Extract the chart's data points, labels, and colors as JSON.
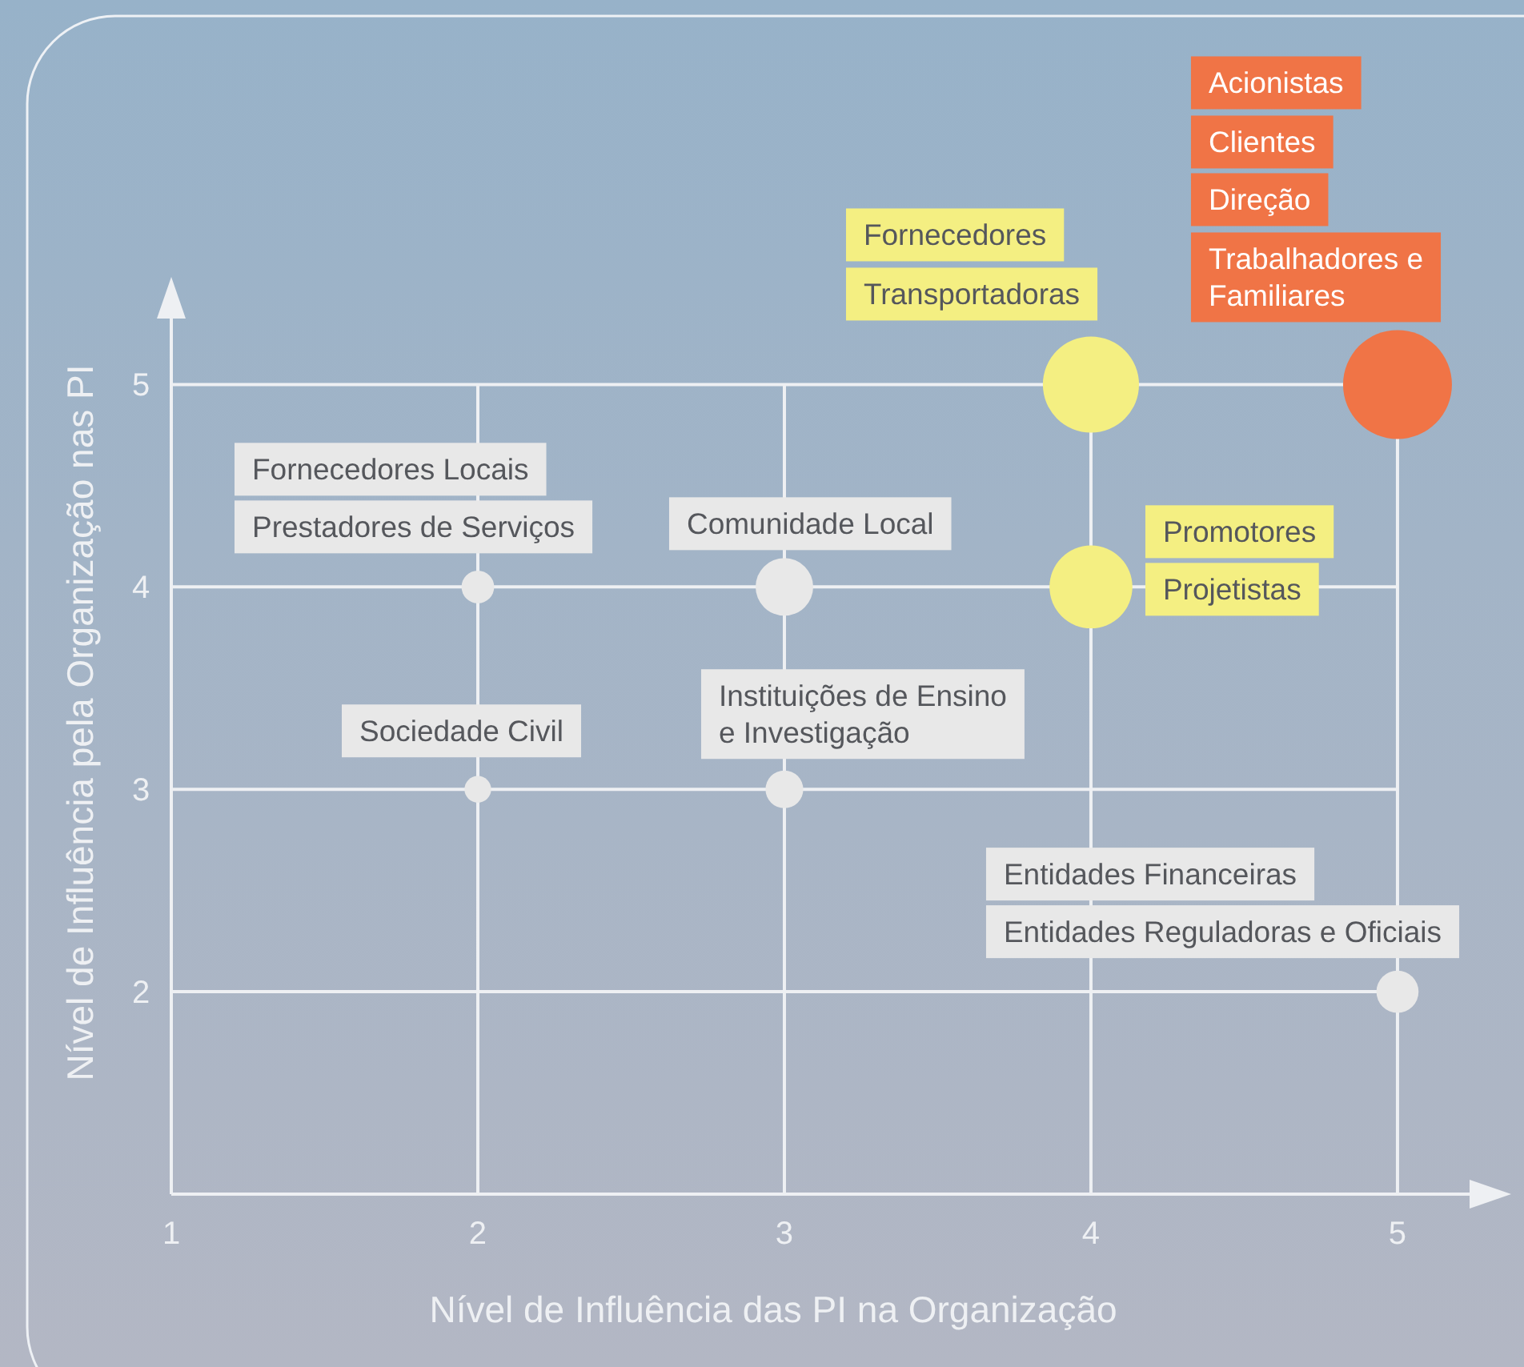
{
  "chart_data": {
    "type": "bubble",
    "xlabel": "Nível de Influência das PI na Organização",
    "ylabel": "Nível de Influência pela Organização nas PI",
    "x": [
      2,
      2,
      3,
      3,
      4,
      4,
      5,
      5
    ],
    "values": [
      4,
      3,
      4,
      3,
      5,
      4,
      5,
      2
    ],
    "sizes": [
      0.09,
      0.06,
      0.28,
      0.12,
      0.78,
      0.58,
      1,
      0.15
    ],
    "colors": [
      "#e8e8e8",
      "#e8e8e8",
      "#e8e8e8",
      "#e8e8e8",
      "#f4ef82",
      "#f4ef82",
      "#f07446",
      "#e8e8e8"
    ],
    "xlim": [
      1,
      5.35
    ],
    "ylim": [
      1,
      5.5
    ],
    "xticks": [
      1,
      2,
      3,
      4,
      5
    ],
    "yticks": [
      2,
      3,
      4,
      5
    ],
    "grid": true,
    "annotations": [
      "Fornecedores Locais",
      "Prestadores de Serviços",
      "Sociedade Civil",
      "Comunidade Local",
      "Instituições de Ensino\ne Investigação",
      "Fornecedores",
      "Transportadoras",
      "Promotores",
      "Projetistas",
      "Acionistas",
      "Clientes",
      "Direção",
      "Trabalhadores e\nFamiliares",
      "Entidades Financeiras",
      "Entidades Reguladoras e Oficiais"
    ]
  }
}
